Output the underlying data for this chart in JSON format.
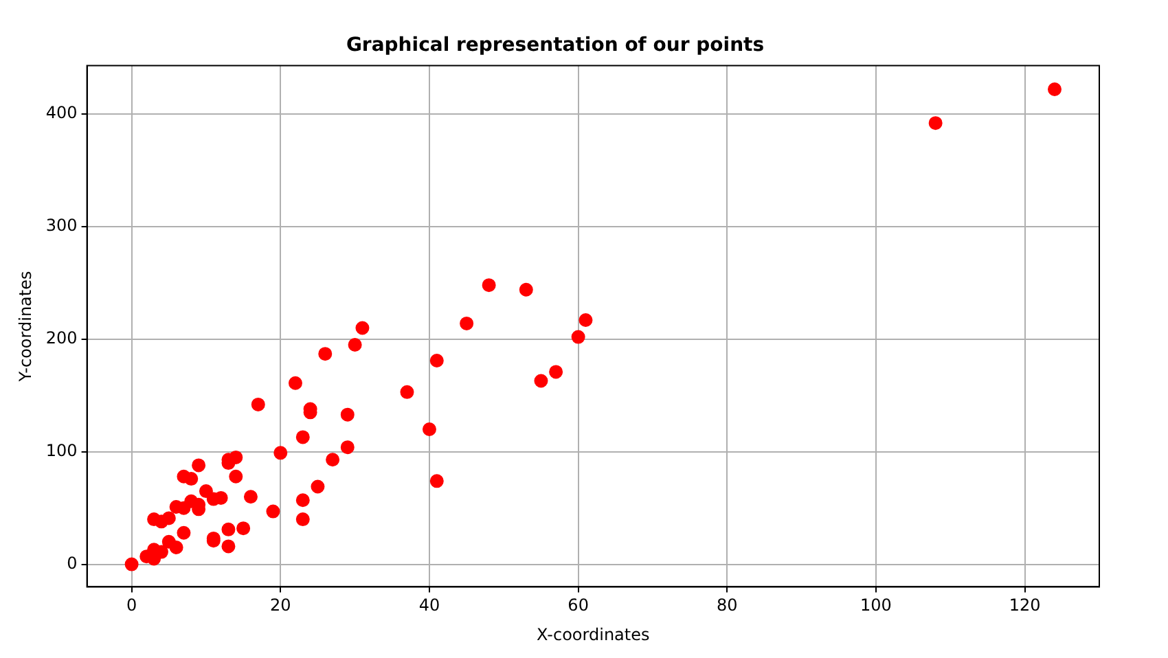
{
  "chart_data": {
    "type": "scatter",
    "title": "Graphical representation of our points",
    "xlabel": "X-coordinates",
    "ylabel": "Y-coordinates",
    "x": [
      0,
      2,
      3,
      3,
      3,
      4,
      4,
      5,
      5,
      6,
      6,
      7,
      7,
      7,
      8,
      8,
      9,
      9,
      9,
      10,
      11,
      11,
      11,
      12,
      13,
      13,
      13,
      13,
      14,
      14,
      15,
      16,
      17,
      19,
      20,
      22,
      23,
      23,
      23,
      24,
      24,
      25,
      26,
      27,
      29,
      29,
      30,
      31,
      37,
      40,
      41,
      41,
      45,
      48,
      53,
      55,
      57,
      60,
      61,
      108,
      124
    ],
    "values": [
      0,
      7,
      5,
      13,
      40,
      11,
      38,
      20,
      41,
      15,
      51,
      28,
      50,
      78,
      56,
      76,
      49,
      53,
      88,
      65,
      21,
      23,
      58,
      59,
      16,
      31,
      90,
      93,
      78,
      95,
      32,
      60,
      142,
      47,
      99,
      161,
      40,
      57,
      113,
      135,
      138,
      69,
      187,
      93,
      104,
      133,
      195,
      210,
      153,
      120,
      74,
      181,
      214,
      248,
      244,
      163,
      171,
      202,
      217,
      392,
      422
    ],
    "color": "#ff0000",
    "marker": "circle",
    "xlim": [
      -6,
      130
    ],
    "ylim": [
      -20,
      443
    ],
    "xticks": [
      0,
      20,
      40,
      60,
      80,
      100,
      120
    ],
    "yticks": [
      0,
      100,
      200,
      300,
      400
    ],
    "grid": true,
    "legend": false
  }
}
